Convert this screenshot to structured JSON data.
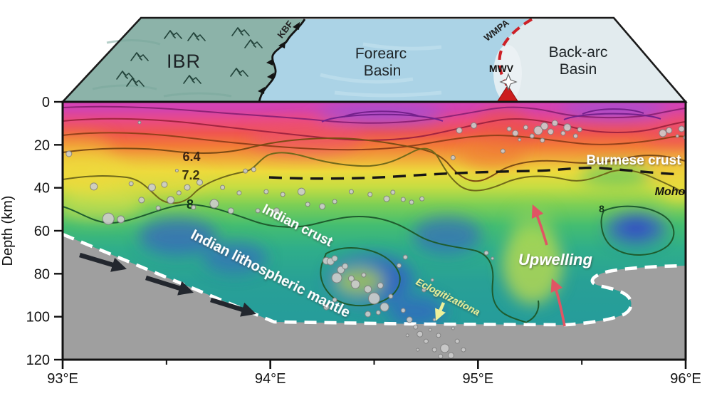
{
  "map_panel": {
    "regions": [
      {
        "id": "ibr",
        "label": "IBR",
        "color": "#8cb3a9"
      },
      {
        "id": "forearc",
        "label_line1": "Forearc",
        "label_line2": "Basin",
        "color": "#abd3e6"
      },
      {
        "id": "backarc",
        "label_line1": "Back-arc",
        "label_line2": "Basin",
        "color": "#e2ebee"
      }
    ],
    "faults": [
      {
        "id": "kbf",
        "label": "KBF",
        "style": "thrust-teeth",
        "color": "#1a1a1a"
      },
      {
        "id": "wmpa",
        "label": "WMPA",
        "style": "red-dashed",
        "color": "#cd2026"
      }
    ],
    "volcano": {
      "label": "MWV",
      "triangle_color": "#cc1d1d",
      "star_color": "#ffffff"
    }
  },
  "section_labels": {
    "burmese_crust": "Burmese crust",
    "moho": "Moho",
    "indian_crust": "Indian crust",
    "indian_lithospheric_mantle": "Indian lithospheric mantle",
    "upwelling": "Upwelling",
    "eclogitization": "Eclogitizationa"
  },
  "colors": {
    "slab_gray": "#9f9f9f",
    "quake_fill": "#cccccc",
    "quake_stroke": "#808080",
    "upwelling_arrow": "#e05564",
    "subduction_arrow": "#23272e",
    "eclogitization_text": "#edf09a",
    "moho_line": "#161616",
    "slab_boundary_dash": "#ffffff",
    "wmpa_fault": "#cd2026",
    "volcano_red": "#cc1d1d"
  },
  "chart_data": {
    "type": "heatmap",
    "description": "Seismic velocity cross-section with depth vs longitude, overlain earthquakes, contours and tectonic annotations",
    "x_axis": {
      "label": "",
      "range": [
        93,
        96
      ],
      "ticks": [
        93,
        94,
        95,
        96
      ],
      "tick_labels": [
        "93°E",
        "94°E",
        "95°E",
        "96°E"
      ],
      "minor_ticks": [
        93.5,
        94.5,
        95.5
      ]
    },
    "y_axis": {
      "label": "Depth (km)",
      "range": [
        0,
        120
      ],
      "ticks": [
        0,
        20,
        40,
        60,
        80,
        100,
        120
      ],
      "inverted": true
    },
    "contour_levels_labeled": [
      "6.4",
      "7.2",
      "8"
    ],
    "colormap_slow_to_fast": [
      "#a44fd0",
      "#d743b8",
      "#e94a85",
      "#ef5550",
      "#f27a38",
      "#f0a93a",
      "#eeda3c",
      "#c6dd42",
      "#7ccf55",
      "#44bd71",
      "#2fae8a",
      "#28a096",
      "#3752cf"
    ],
    "moho_depth_km_approx": 33,
    "slab_top_boundary_lon_depth": [
      [
        93.0,
        62
      ],
      [
        94.02,
        102
      ],
      [
        95.42,
        104
      ],
      [
        95.56,
        99
      ],
      [
        95.58,
        88
      ],
      [
        95.56,
        84
      ],
      [
        95.63,
        79
      ],
      [
        96.0,
        76
      ]
    ],
    "earthquakes_lon_depth_r": [
      [
        93.03,
        24.2,
        4
      ],
      [
        93.15,
        39.4,
        5
      ],
      [
        93.22,
        54.4,
        8
      ],
      [
        93.28,
        54.7,
        5
      ],
      [
        93.33,
        38.1,
        3
      ],
      [
        93.37,
        9.6,
        2
      ],
      [
        93.38,
        45.7,
        4
      ],
      [
        93.43,
        39.8,
        5
      ],
      [
        93.46,
        49.4,
        3
      ],
      [
        93.49,
        38.5,
        4
      ],
      [
        93.52,
        45.7,
        5
      ],
      [
        93.56,
        42.4,
        3
      ],
      [
        93.55,
        32.0,
        2
      ],
      [
        93.6,
        39.8,
        4
      ],
      [
        93.63,
        49.1,
        3
      ],
      [
        93.66,
        37.5,
        4
      ],
      [
        93.73,
        47.4,
        6
      ],
      [
        93.77,
        39.8,
        3
      ],
      [
        93.81,
        50.7,
        4
      ],
      [
        93.85,
        42.4,
        3
      ],
      [
        93.88,
        32.2,
        3
      ],
      [
        93.92,
        31.5,
        3
      ],
      [
        93.94,
        50.7,
        3
      ],
      [
        93.98,
        41.8,
        3
      ],
      [
        94.03,
        50.7,
        4
      ],
      [
        94.06,
        43.1,
        3
      ],
      [
        94.15,
        41.8,
        5
      ],
      [
        94.18,
        47.7,
        3
      ],
      [
        94.25,
        48.7,
        4
      ],
      [
        94.31,
        46.4,
        3
      ],
      [
        94.39,
        41.8,
        3
      ],
      [
        94.48,
        43.1,
        3
      ],
      [
        94.56,
        45.1,
        4
      ],
      [
        94.59,
        42.1,
        3
      ],
      [
        94.64,
        45.4,
        3
      ],
      [
        94.68,
        46.7,
        3
      ],
      [
        94.73,
        45.1,
        3
      ],
      [
        94.27,
        74.0,
        5
      ],
      [
        94.29,
        74.3,
        5
      ],
      [
        94.31,
        72.9,
        4
      ],
      [
        94.32,
        81.9,
        7
      ],
      [
        94.34,
        78.2,
        5
      ],
      [
        94.36,
        76.5,
        4
      ],
      [
        94.39,
        82.2,
        4
      ],
      [
        94.41,
        84.9,
        6
      ],
      [
        94.45,
        80.6,
        3
      ],
      [
        94.47,
        87.2,
        5
      ],
      [
        94.5,
        91.5,
        8
      ],
      [
        94.53,
        85.5,
        4
      ],
      [
        94.55,
        95.5,
        6
      ],
      [
        94.58,
        90.5,
        3
      ],
      [
        94.27,
        95.5,
        4
      ],
      [
        94.31,
        92.2,
        3
      ],
      [
        94.47,
        98.8,
        4
      ],
      [
        94.52,
        98.1,
        3
      ],
      [
        94.62,
        76.2,
        3
      ],
      [
        94.65,
        72.3,
        3
      ],
      [
        94.74,
        87.5,
        3
      ],
      [
        94.78,
        82.9,
        2
      ],
      [
        95.04,
        70.3,
        3
      ],
      [
        95.07,
        72.9,
        2
      ],
      [
        94.64,
        97.1,
        3
      ],
      [
        94.67,
        101.4,
        4
      ],
      [
        94.7,
        104.8,
        3
      ],
      [
        94.72,
        108.1,
        4
      ],
      [
        94.75,
        111.4,
        3
      ],
      [
        94.77,
        106.1,
        2
      ],
      [
        94.79,
        115.4,
        3
      ],
      [
        94.81,
        108.7,
        3
      ],
      [
        94.82,
        118.4,
        3
      ],
      [
        94.84,
        114.7,
        6
      ],
      [
        94.87,
        118.0,
        4
      ],
      [
        94.9,
        111.4,
        3
      ],
      [
        94.79,
        101.4,
        2
      ],
      [
        94.66,
        108.7,
        2
      ],
      [
        94.71,
        115.4,
        2
      ],
      [
        94.88,
        105.4,
        2
      ],
      [
        94.93,
        115.4,
        3
      ],
      [
        95.12,
        22.9,
        3
      ],
      [
        95.15,
        12.6,
        3
      ],
      [
        95.18,
        14.6,
        4
      ],
      [
        95.2,
        17.6,
        2
      ],
      [
        95.23,
        11.9,
        3
      ],
      [
        95.26,
        15.9,
        3
      ],
      [
        95.29,
        13.3,
        6
      ],
      [
        95.32,
        11.3,
        5
      ],
      [
        95.35,
        13.9,
        4
      ],
      [
        95.37,
        9.9,
        4
      ],
      [
        95.41,
        14.6,
        3
      ],
      [
        95.43,
        11.9,
        5
      ],
      [
        95.47,
        15.9,
        3
      ],
      [
        95.31,
        17.9,
        3
      ],
      [
        95.49,
        12.9,
        3
      ],
      [
        94.91,
        13.3,
        4
      ],
      [
        94.98,
        11.0,
        4
      ],
      [
        94.88,
        26.0,
        3
      ],
      [
        95.89,
        14.6,
        5
      ],
      [
        95.92,
        13.3,
        4
      ],
      [
        95.96,
        15.9,
        2
      ],
      [
        95.98,
        12.6,
        4
      ],
      [
        96.0,
        16.6,
        3
      ]
    ],
    "annotations": [
      {
        "text": "Burmese crust",
        "color": "#ffffff"
      },
      {
        "text": "Moho",
        "color": "#111111"
      },
      {
        "text": "Indian crust",
        "color": "#ffffff"
      },
      {
        "text": "Indian lithospheric mantle",
        "color": "#ffffff"
      },
      {
        "text": "Upwelling",
        "color": "#f5f8e8"
      },
      {
        "text": "Eclogitizationa",
        "color": "#edf09a"
      }
    ],
    "legend_position": "none",
    "grid": false
  }
}
